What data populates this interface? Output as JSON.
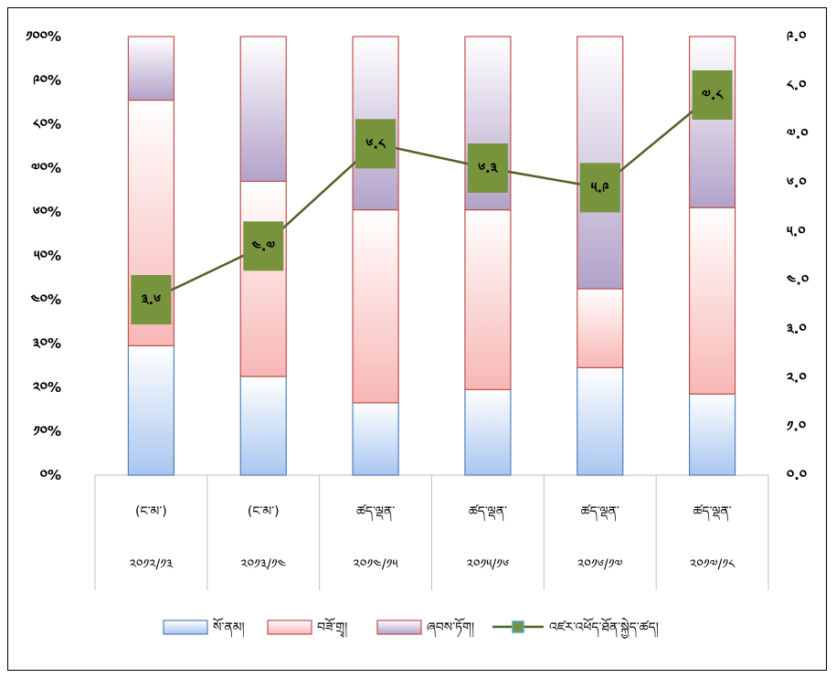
{
  "chart_data": {
    "type": "bar",
    "stacked": true,
    "categories_top": [
      "(ང་མ་)",
      "(ང་མ་)",
      "ཚད་ལྡན་",
      "ཚད་ལྡན་",
      "ཚད་ལྡན་",
      "ཚད་ལྡན་"
    ],
    "categories_bottom": [
      "༢༠༡༢/༡༣",
      "༢༠༡༣/༡༤",
      "༢༠༡༤/༡༥",
      "༢༠༡༥/༡༦",
      "༢༠༡༦/༡༧",
      "༢༠༡༧/༡༨"
    ],
    "series": [
      {
        "name": "སོ་ནམ།",
        "values": [
          29.5,
          22.5,
          16.5,
          19.5,
          24.5,
          18.5
        ],
        "color": "#a9c6ef",
        "border": "#4f81bd"
      },
      {
        "name": "བཟོ་གྲྭ།",
        "values": [
          56,
          44.5,
          44,
          41,
          18,
          42.5
        ],
        "color": "#f7b7b5",
        "border": "#c0504d"
      },
      {
        "name": "ཞབས་ཏོག།",
        "values": [
          14.5,
          33,
          39.5,
          39.5,
          57.5,
          39
        ],
        "color": "#b2a2c9",
        "border": "#c0504d"
      }
    ],
    "line_series": {
      "name": "འཛར་འཕོད་ཐོན་སྐྱེད་ཚད།",
      "values": [
        3.6,
        4.7,
        6.8,
        6.3,
        5.9,
        7.8
      ],
      "labels": [
        "༣.༦",
        "༤.༧",
        "༦.༨",
        "༦.༣",
        "༥.༩",
        "༧.༨"
      ],
      "color": "#4f6228",
      "label_bg": "#77933c"
    },
    "y_left": {
      "ticks": [
        "༠%",
        "༡༠%",
        "༢༠%",
        "༣༠%",
        "༤༠%",
        "༥༠%",
        "༦༠%",
        "༧༠%",
        "༨༠%",
        "༩༠%",
        "༡༠༠%"
      ],
      "ylim": [
        0,
        100
      ]
    },
    "y_right": {
      "ticks": [
        "༠.༠",
        "༡.༠",
        "༢.༠",
        "༣.༠",
        "༤.༠",
        "༥.༠",
        "༦.༠",
        "༧.༠",
        "༨.༠",
        "༩.༠"
      ],
      "ylim": [
        0,
        9
      ]
    },
    "legend_position": "bottom",
    "grid": false
  }
}
